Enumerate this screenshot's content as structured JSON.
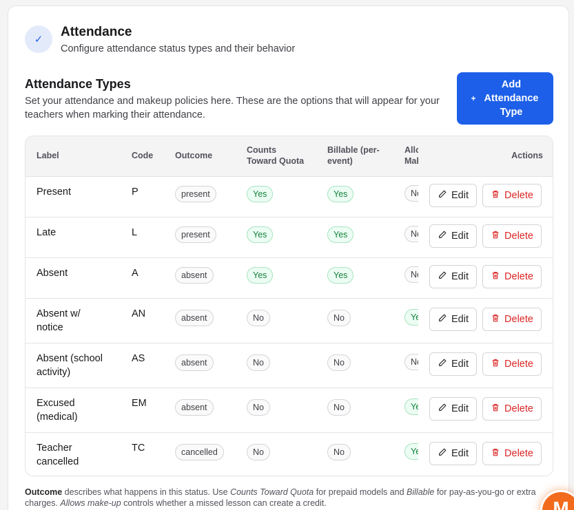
{
  "header": {
    "icon": "check-icon",
    "title": "Attendance",
    "subtitle": "Configure attendance status types and their behavior"
  },
  "section": {
    "title": "Attendance Types",
    "description": "Set your attendance and makeup policies here. These are the options that will appear for your teachers when marking their attendance.",
    "add_button": {
      "icon": "plus-icon",
      "line1": "Add",
      "line2": "Attendance",
      "line3": "Type"
    }
  },
  "table": {
    "headers": {
      "label": "Label",
      "code": "Code",
      "outcome": "Outcome",
      "counts_1": "Counts",
      "counts_2": "Toward Quota",
      "billable_1": "Billable (per-",
      "billable_2": "event)",
      "allows_1": "Allows",
      "allows_2": "Make-up",
      "actions": "Actions"
    },
    "edit_label": "Edit",
    "delete_label": "Delete",
    "rows": [
      {
        "label1": "Present",
        "label2": "",
        "code": "P",
        "outcome": "present",
        "counts": "Yes",
        "billable": "Yes",
        "allows": "No"
      },
      {
        "label1": "Late",
        "label2": "",
        "code": "L",
        "outcome": "present",
        "counts": "Yes",
        "billable": "Yes",
        "allows": "No"
      },
      {
        "label1": "Absent",
        "label2": "",
        "code": "A",
        "outcome": "absent",
        "counts": "Yes",
        "billable": "Yes",
        "allows": "No"
      },
      {
        "label1": "Absent w/",
        "label2": "notice",
        "code": "AN",
        "outcome": "absent",
        "counts": "No",
        "billable": "No",
        "allows": "Yes"
      },
      {
        "label1": "Absent (school",
        "label2": "activity)",
        "code": "AS",
        "outcome": "absent",
        "counts": "No",
        "billable": "No",
        "allows": "No"
      },
      {
        "label1": "Excused",
        "label2": "(medical)",
        "code": "EM",
        "outcome": "absent",
        "counts": "No",
        "billable": "No",
        "allows": "Yes"
      },
      {
        "label1": "Teacher",
        "label2": "cancelled",
        "code": "TC",
        "outcome": "cancelled",
        "counts": "No",
        "billable": "No",
        "allows": "Yes"
      }
    ]
  },
  "footnote": {
    "outcome_term": "Outcome",
    "t1": " describes what happens in this status. Use ",
    "counts_term": "Counts Toward Quota",
    "t2": " for prepaid models and ",
    "billable_term": "Billable",
    "t3": " for pay-as-you-go or extra charges. ",
    "makeup_term": "Allows make-up",
    "t4": " controls whether a missed lesson can create a credit."
  },
  "avatar": {
    "letter": "M"
  },
  "colors": {
    "accent": "#1d5fe8",
    "yes_bg": "#ecfdf3",
    "yes_text": "#15803d",
    "danger": "#dc2626"
  }
}
